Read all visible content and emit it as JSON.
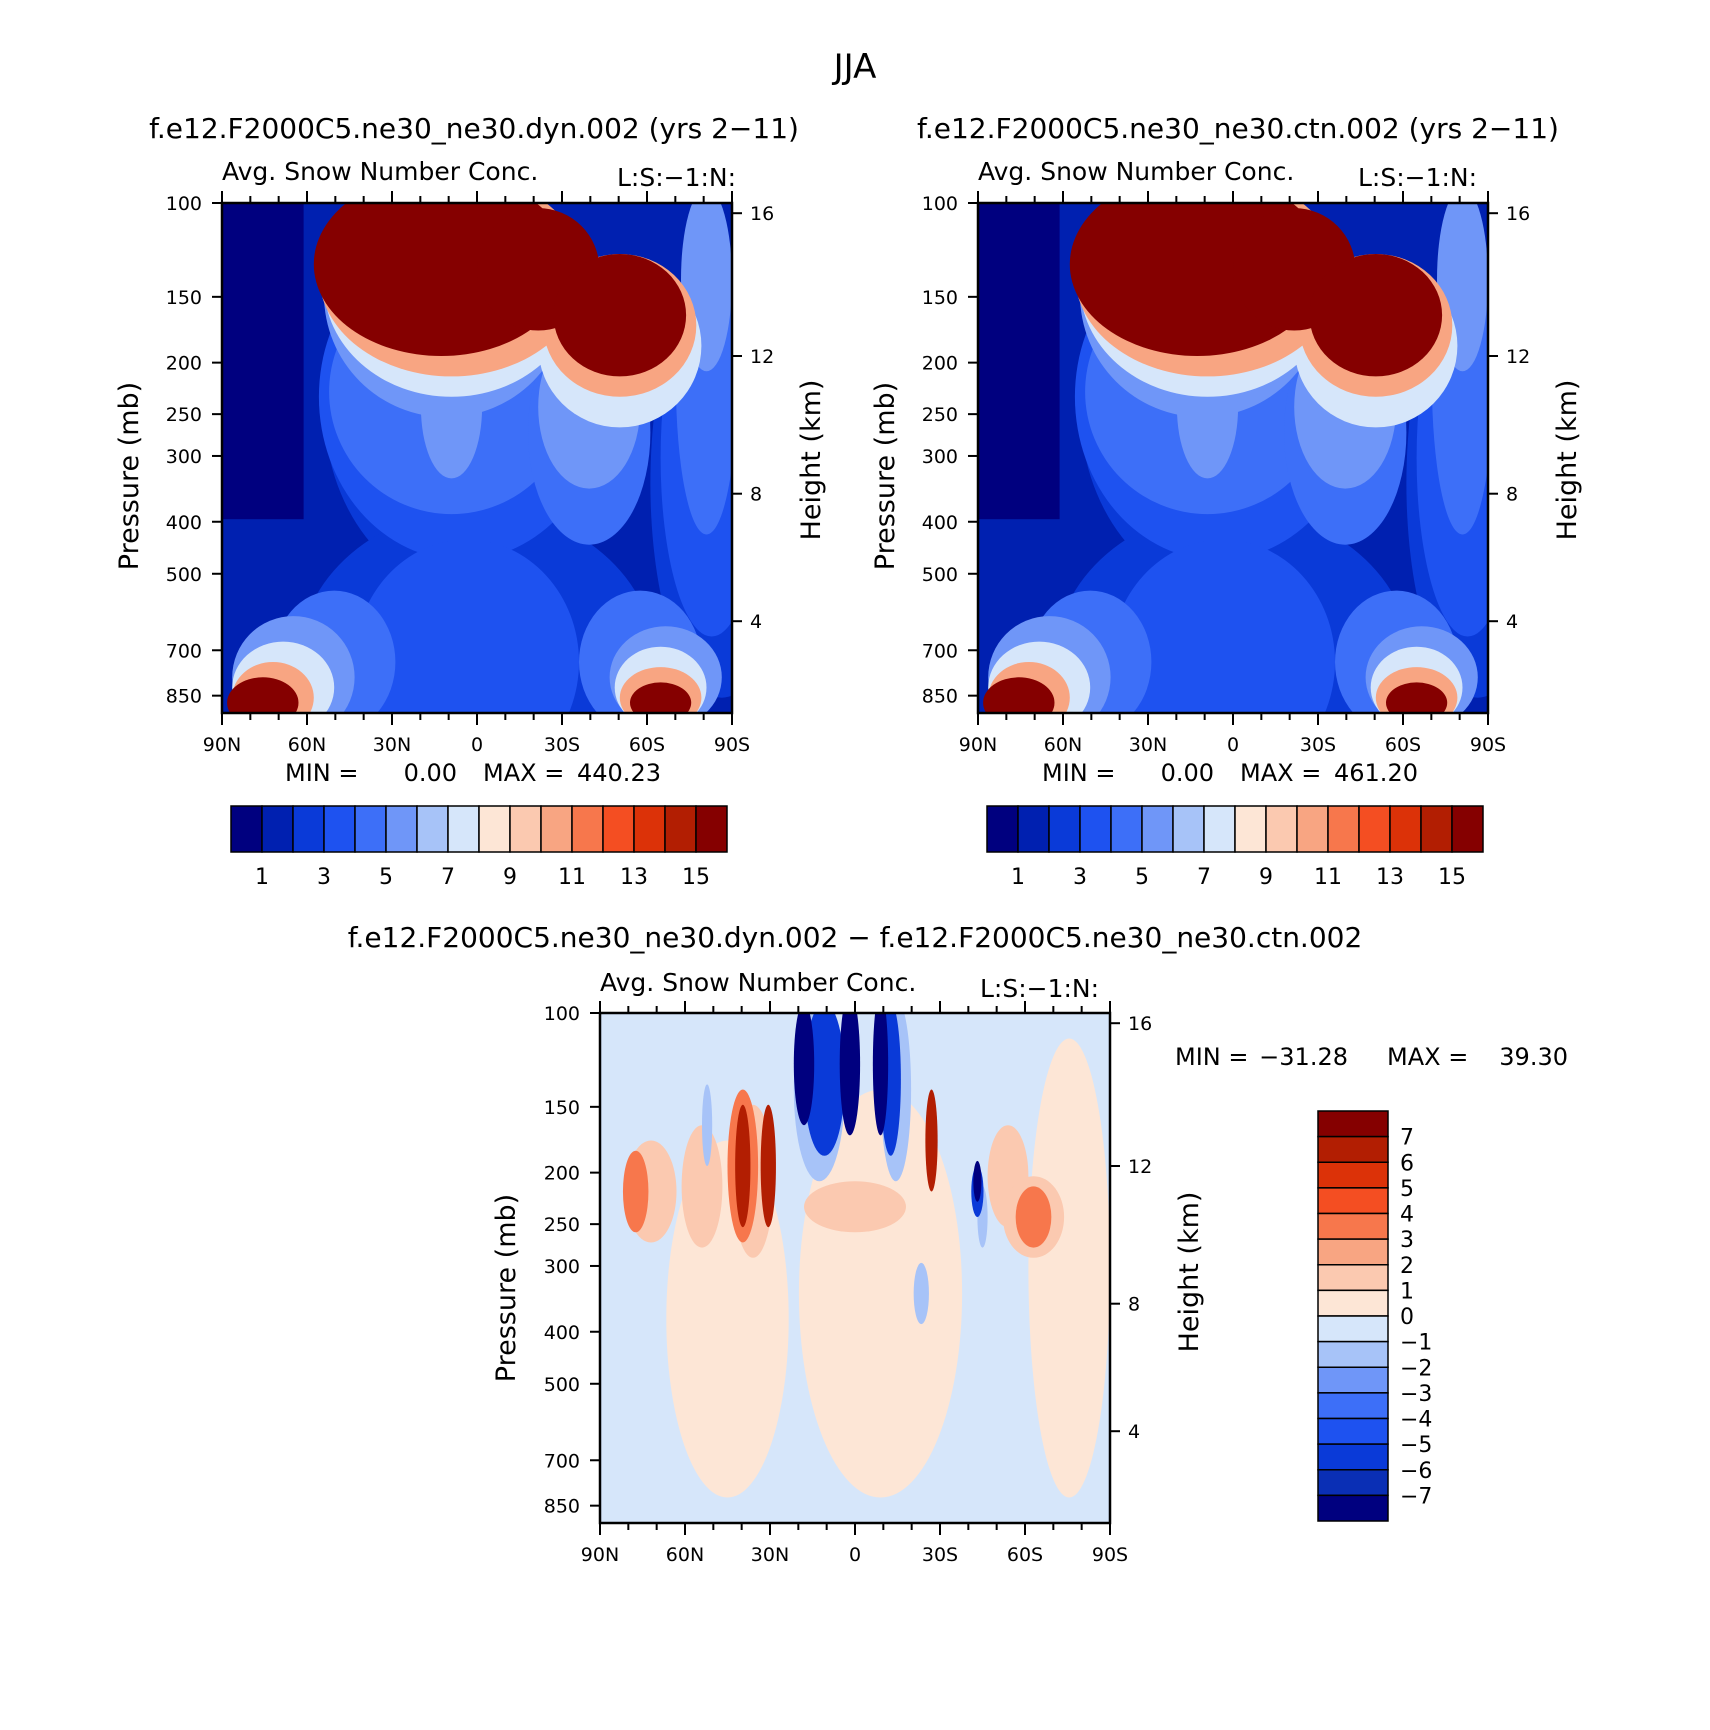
{
  "title": "JJA",
  "colors": {
    "seq": [
      "#00007f",
      "#0020b0",
      "#0a3ad8",
      "#1e52f0",
      "#3d6ff8",
      "#6f96f8",
      "#a7c3f8",
      "#d6e6fa",
      "#fde6d6",
      "#fbc9b0",
      "#f8a582",
      "#f7774c",
      "#f44e22",
      "#dc3208",
      "#b21e02",
      "#850000"
    ],
    "diff": [
      "#00007f",
      "#0a2fb5",
      "#0a3ad8",
      "#1e52f0",
      "#3d6ff8",
      "#6f96f8",
      "#a7c3f8",
      "#d6e6fa",
      "#fde6d6",
      "#fbc9b0",
      "#f8a582",
      "#f7774c",
      "#f44e22",
      "#dc3208",
      "#b21e02",
      "#850000"
    ]
  },
  "chart_data": [
    {
      "type": "heatmap",
      "title": "f.e12.F2000C5.ne30_ne30.dyn.002 (yrs 2−11)",
      "subtitle": "Avg. Snow Number Conc.",
      "units": "L:S:−1:N:",
      "xlabel": "",
      "ylabel": "Pressure (mb)",
      "ylabel_right": "Height (km)",
      "x_ticks": [
        "90N",
        "60N",
        "30N",
        "0",
        "30S",
        "60S",
        "90S"
      ],
      "y_ticks": [
        "100",
        "150",
        "200",
        "250",
        "300",
        "400",
        "500",
        "700",
        "850"
      ],
      "y_right_ticks": [
        "16",
        "12",
        "8",
        "4"
      ],
      "min_label": "MIN =",
      "min_value": "0.00",
      "max_label": "MAX =",
      "max_value": "440.23",
      "colorbar_labels": [
        "1",
        "3",
        "5",
        "7",
        "9",
        "11",
        "13",
        "15"
      ],
      "contour_levels": [
        1,
        2,
        3,
        4,
        5,
        6,
        7,
        8,
        9,
        10,
        11,
        12,
        13,
        14,
        15
      ]
    },
    {
      "type": "heatmap",
      "title": "f.e12.F2000C5.ne30_ne30.ctn.002 (yrs 2−11)",
      "subtitle": "Avg. Snow Number Conc.",
      "units": "L:S:−1:N:",
      "xlabel": "",
      "ylabel": "Pressure (mb)",
      "ylabel_right": "Height (km)",
      "x_ticks": [
        "90N",
        "60N",
        "30N",
        "0",
        "30S",
        "60S",
        "90S"
      ],
      "y_ticks": [
        "100",
        "150",
        "200",
        "250",
        "300",
        "400",
        "500",
        "700",
        "850"
      ],
      "y_right_ticks": [
        "16",
        "12",
        "8",
        "4"
      ],
      "min_label": "MIN =",
      "min_value": "0.00",
      "max_label": "MAX =",
      "max_value": "461.20",
      "colorbar_labels": [
        "1",
        "3",
        "5",
        "7",
        "9",
        "11",
        "13",
        "15"
      ],
      "contour_levels": [
        1,
        2,
        3,
        4,
        5,
        6,
        7,
        8,
        9,
        10,
        11,
        12,
        13,
        14,
        15
      ]
    },
    {
      "type": "heatmap",
      "title": "f.e12.F2000C5.ne30_ne30.dyn.002 − f.e12.F2000C5.ne30_ne30.ctn.002",
      "subtitle": "Avg. Snow Number Conc.",
      "units": "L:S:−1:N:",
      "xlabel": "",
      "ylabel": "Pressure (mb)",
      "ylabel_right": "Height (km)",
      "x_ticks": [
        "90N",
        "60N",
        "30N",
        "0",
        "30S",
        "60S",
        "90S"
      ],
      "y_ticks": [
        "100",
        "150",
        "200",
        "250",
        "300",
        "400",
        "500",
        "700",
        "850"
      ],
      "y_right_ticks": [
        "16",
        "12",
        "8",
        "4"
      ],
      "min_label": "MIN =",
      "min_value": "−31.28",
      "max_label": "MAX =",
      "max_value": "39.30",
      "colorbar_labels": [
        "7",
        "6",
        "5",
        "4",
        "3",
        "2",
        "1",
        "0",
        "−1",
        "−2",
        "−3",
        "−4",
        "−5",
        "−6",
        "−7"
      ],
      "contour_levels": [
        -7,
        -6,
        -5,
        -4,
        -3,
        -2,
        -1,
        0,
        1,
        2,
        3,
        4,
        5,
        6,
        7
      ]
    }
  ]
}
